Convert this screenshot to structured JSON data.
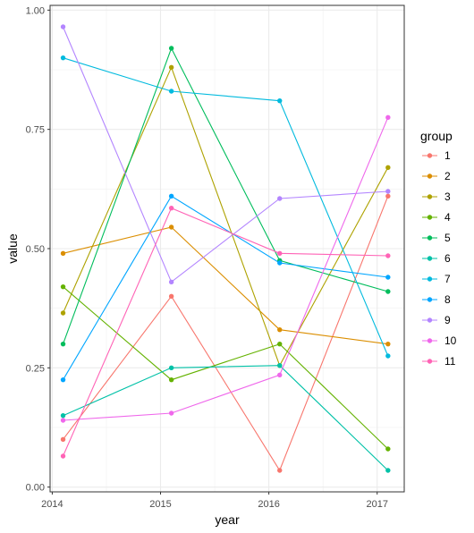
{
  "chart_data": {
    "type": "line",
    "xlabel": "year",
    "ylabel": "value",
    "x": [
      2014,
      2015,
      2016,
      2017
    ],
    "xlim": [
      2013.98,
      2017.25
    ],
    "ylim": [
      -0.01,
      1.01
    ],
    "x_ticks": [
      2014,
      2015,
      2016,
      2017
    ],
    "y_ticks": [
      0.0,
      0.25,
      0.5,
      0.75,
      1.0
    ],
    "x_tick_labels": [
      "2014",
      "2015",
      "2016",
      "2017"
    ],
    "y_tick_labels": [
      "0.00",
      "0.25",
      "0.50",
      "0.75",
      "1.00"
    ],
    "grid": true,
    "legend": {
      "title": "group",
      "position": "right"
    },
    "series": [
      {
        "name": "1",
        "color": "#F8766D",
        "points": [
          [
            2014.1,
            0.1
          ],
          [
            2015.1,
            0.4
          ],
          [
            2016.1,
            0.035
          ],
          [
            2017.1,
            0.61
          ]
        ]
      },
      {
        "name": "2",
        "color": "#DB8E00",
        "points": [
          [
            2014.1,
            0.49
          ],
          [
            2015.1,
            0.545
          ],
          [
            2016.1,
            0.33
          ],
          [
            2017.1,
            0.3
          ]
        ]
      },
      {
        "name": "3",
        "color": "#AEA200",
        "points": [
          [
            2014.1,
            0.365
          ],
          [
            2015.1,
            0.88
          ],
          [
            2016.1,
            0.255
          ],
          [
            2017.1,
            0.67
          ]
        ]
      },
      {
        "name": "4",
        "color": "#64B200",
        "points": [
          [
            2014.1,
            0.42
          ],
          [
            2015.1,
            0.225
          ],
          [
            2016.1,
            0.3
          ],
          [
            2017.1,
            0.08
          ]
        ]
      },
      {
        "name": "5",
        "color": "#00BD5C",
        "points": [
          [
            2014.1,
            0.3
          ],
          [
            2015.1,
            0.92
          ],
          [
            2016.1,
            0.475
          ],
          [
            2017.1,
            0.41
          ]
        ]
      },
      {
        "name": "6",
        "color": "#00C1A7",
        "points": [
          [
            2014.1,
            0.15
          ],
          [
            2015.1,
            0.25
          ],
          [
            2016.1,
            0.255
          ],
          [
            2017.1,
            0.035
          ]
        ]
      },
      {
        "name": "7",
        "color": "#00BADE",
        "points": [
          [
            2014.1,
            0.9
          ],
          [
            2015.1,
            0.83
          ],
          [
            2016.1,
            0.81
          ],
          [
            2017.1,
            0.275
          ]
        ]
      },
      {
        "name": "8",
        "color": "#00A6FF",
        "points": [
          [
            2014.1,
            0.225
          ],
          [
            2015.1,
            0.61
          ],
          [
            2016.1,
            0.47
          ],
          [
            2017.1,
            0.44
          ]
        ]
      },
      {
        "name": "9",
        "color": "#B385FF",
        "points": [
          [
            2014.1,
            0.965
          ],
          [
            2015.1,
            0.43
          ],
          [
            2016.1,
            0.605
          ],
          [
            2017.1,
            0.62
          ]
        ]
      },
      {
        "name": "10",
        "color": "#EF67EB",
        "points": [
          [
            2014.1,
            0.14
          ],
          [
            2015.1,
            0.155
          ],
          [
            2016.1,
            0.235
          ],
          [
            2017.1,
            0.775
          ]
        ]
      },
      {
        "name": "11",
        "color": "#FF63B6",
        "points": [
          [
            2014.1,
            0.065
          ],
          [
            2015.1,
            0.585
          ],
          [
            2016.1,
            0.49
          ],
          [
            2017.1,
            0.485
          ]
        ]
      }
    ]
  }
}
